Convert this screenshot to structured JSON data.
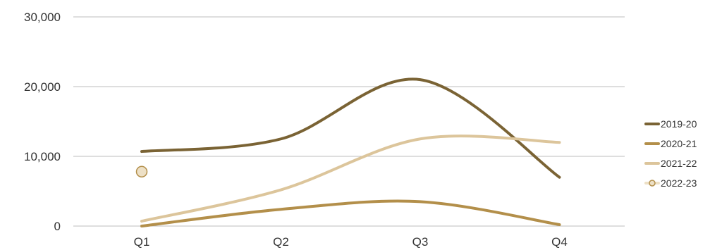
{
  "chart_data": {
    "type": "line",
    "smooth": true,
    "categories": [
      "Q1",
      "Q2",
      "Q3",
      "Q4"
    ],
    "ylim": [
      0,
      30000
    ],
    "yticks": [
      {
        "value": 0,
        "label": "0"
      },
      {
        "value": 10000,
        "label": "10,000"
      },
      {
        "value": 20000,
        "label": "20,000"
      },
      {
        "value": 30000,
        "label": "30,000"
      }
    ],
    "grid": true,
    "legend_position": "right",
    "series": [
      {
        "name": "2019-20",
        "color": "#7a6334",
        "values": [
          10700,
          12500,
          21000,
          7000
        ]
      },
      {
        "name": "2020-21",
        "color": "#b38f4a",
        "values": [
          0,
          2400,
          3500,
          200
        ]
      },
      {
        "name": "2021-22",
        "color": "#dcc59b",
        "values": [
          700,
          5200,
          12500,
          12000
        ]
      },
      {
        "name": "2022-23",
        "color": "#ede0c6",
        "marker_stroke": "#b38f4a",
        "values": [
          7800,
          null,
          null,
          null
        ]
      }
    ]
  }
}
